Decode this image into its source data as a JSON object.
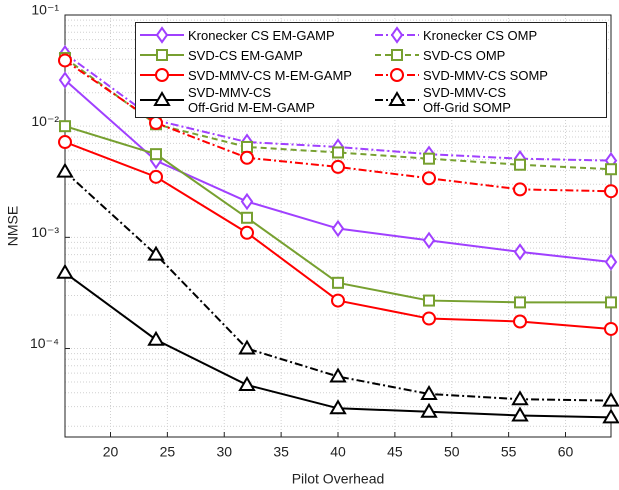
{
  "chart_data": {
    "type": "line",
    "xlabel": "Pilot Overhead",
    "ylabel": "NMSE",
    "x": [
      16,
      24,
      32,
      40,
      48,
      56,
      64
    ],
    "xlim": [
      16,
      64
    ],
    "xticks": [
      20,
      25,
      30,
      35,
      40,
      45,
      50,
      55,
      60
    ],
    "ylim": [
      1.6e-05,
      0.1
    ],
    "log_y": true,
    "grid": true,
    "yticks": [
      {
        "value": 0.0001,
        "label": "10⁻⁴"
      },
      {
        "value": 0.001,
        "label": "10⁻³"
      },
      {
        "value": 0.01,
        "label": "10⁻²"
      },
      {
        "value": 0.1,
        "label": "10⁻¹"
      }
    ],
    "legend": "upper right",
    "series": [
      {
        "name": "Kronecker CS EM-GAMP",
        "color": "#a040ff",
        "marker": "diamond",
        "dash": "solid",
        "values": [
          0.026,
          0.0049,
          0.0021,
          0.0012,
          0.00094,
          0.00074,
          0.0006
        ]
      },
      {
        "name": "Kronecker CS OMP",
        "color": "#a040ff",
        "marker": "diamond",
        "dash": "dashdot",
        "values": [
          0.045,
          0.0113,
          0.0072,
          0.0065,
          0.0056,
          0.0051,
          0.0049
        ]
      },
      {
        "name": "SVD-CS EM-GAMP",
        "color": "#77a030",
        "marker": "square",
        "dash": "solid",
        "values": [
          0.01,
          0.0056,
          0.0015,
          0.00039,
          0.00027,
          0.00026,
          0.00026
        ]
      },
      {
        "name": "SVD-CS OMP",
        "color": "#77a030",
        "marker": "square",
        "dash": "dash",
        "values": [
          0.041,
          0.0104,
          0.0065,
          0.0058,
          0.0051,
          0.0045,
          0.0041
        ]
      },
      {
        "name": "SVD-MMV-CS M-EM-GAMP",
        "color": "#ff0000",
        "marker": "circle",
        "dash": "solid",
        "values": [
          0.0072,
          0.0035,
          0.0011,
          0.00027,
          0.000186,
          0.000175,
          0.00015
        ]
      },
      {
        "name": "SVD-MMV-CS SOMP",
        "color": "#ff0000",
        "marker": "circle",
        "dash": "dashdot",
        "values": [
          0.039,
          0.0107,
          0.0052,
          0.0043,
          0.0034,
          0.0027,
          0.0026
        ]
      },
      {
        "name": "SVD-MMV-CS\nOff-Grid M-EM-GAMP",
        "color": "#000000",
        "marker": "triangle",
        "dash": "solid",
        "values": [
          0.00048,
          0.00012,
          4.7e-05,
          2.9e-05,
          2.7e-05,
          2.5e-05,
          2.4e-05
        ]
      },
      {
        "name": "SVD-MMV-CS\nOff-Grid SOMP",
        "color": "#000000",
        "marker": "triangle",
        "dash": "dashdot",
        "values": [
          0.0039,
          0.0007,
          0.0001,
          5.6e-05,
          3.9e-05,
          3.5e-05,
          3.4e-05
        ]
      }
    ]
  }
}
